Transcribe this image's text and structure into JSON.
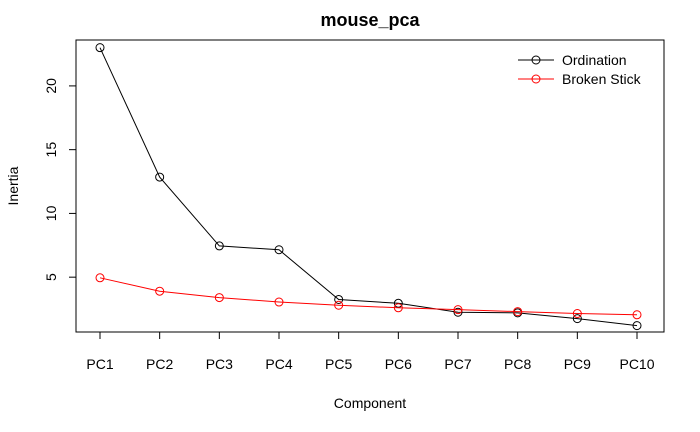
{
  "chart_data": {
    "type": "line",
    "title": "mouse_pca",
    "xlabel": "Component",
    "ylabel": "Inertia",
    "categories": [
      "PC1",
      "PC2",
      "PC3",
      "PC4",
      "PC5",
      "PC6",
      "PC7",
      "PC8",
      "PC9",
      "PC10"
    ],
    "yticks": [
      5,
      10,
      15,
      20
    ],
    "ylim": [
      0.7,
      23.6
    ],
    "grid": false,
    "legend_position": "top-right",
    "series": [
      {
        "name": "Ordination",
        "color": "#000000",
        "marker": "open-circle",
        "values": [
          23.0,
          12.85,
          7.45,
          7.15,
          3.25,
          2.95,
          2.25,
          2.2,
          1.75,
          1.2
        ]
      },
      {
        "name": "Broken Stick",
        "color": "#ff0000",
        "marker": "open-circle",
        "values": [
          4.95,
          3.9,
          3.4,
          3.05,
          2.8,
          2.6,
          2.45,
          2.3,
          2.15,
          2.05
        ]
      }
    ]
  }
}
